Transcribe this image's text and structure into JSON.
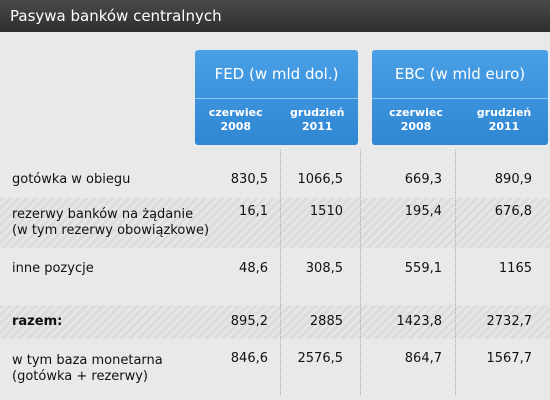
{
  "title": "Pasywa banków centralnych",
  "table": {
    "groups": [
      {
        "name": "FED (w mld dol.)",
        "columns": [
          [
            "czerwiec",
            "2008"
          ],
          [
            "grudzień",
            "2011"
          ]
        ]
      },
      {
        "name": "EBC (w mld euro)",
        "columns": [
          [
            "czerwiec",
            "2008"
          ],
          [
            "grudzień",
            "2011"
          ]
        ]
      }
    ],
    "rows": [
      {
        "label": [
          "gotówka w obiegu"
        ],
        "values": [
          "830,5",
          "1066,5",
          "669,3",
          "890,9"
        ]
      },
      {
        "label": [
          "rezerwy banków na żądanie",
          "(w tym rezerwy obowiązkowe)"
        ],
        "values": [
          "16,1",
          "1510",
          "195,4",
          "676,8"
        ]
      },
      {
        "label": [
          "inne pozycje"
        ],
        "values": [
          "48,6",
          "308,5",
          "559,1",
          "1165"
        ]
      },
      {
        "label": [
          "razem:"
        ],
        "values": [
          "895,2",
          "2885",
          "1423,8",
          "2732,7"
        ],
        "bold": true
      },
      {
        "label": [
          "w tym baza monetarna",
          "(gotówka + rezerwy)"
        ],
        "values": [
          "846,6",
          "2576,5",
          "864,7",
          "1567,7"
        ]
      }
    ]
  }
}
